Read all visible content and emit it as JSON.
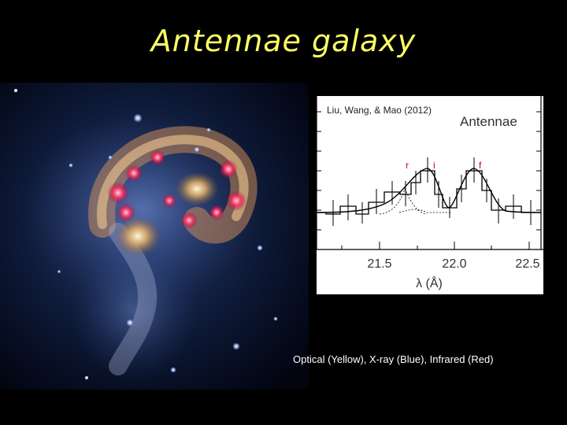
{
  "slide": {
    "title": "Antennae galaxy",
    "caption": "Optical (Yellow), X-ray (Blue), Infrared (Red)"
  },
  "galaxy_image": {
    "icon": "antennae-galaxy-composite-image"
  },
  "spectrum_plot": {
    "citation": "Liu, Wang, & Mao (2012)",
    "object_label": "Antennae",
    "xlabel": "λ (Å)",
    "x_ticks": [
      "21.5",
      "22.0",
      "22.5"
    ],
    "line_labels": [
      "r",
      "i",
      "f"
    ],
    "colors": {
      "line_labels": "#cc0000"
    }
  }
}
